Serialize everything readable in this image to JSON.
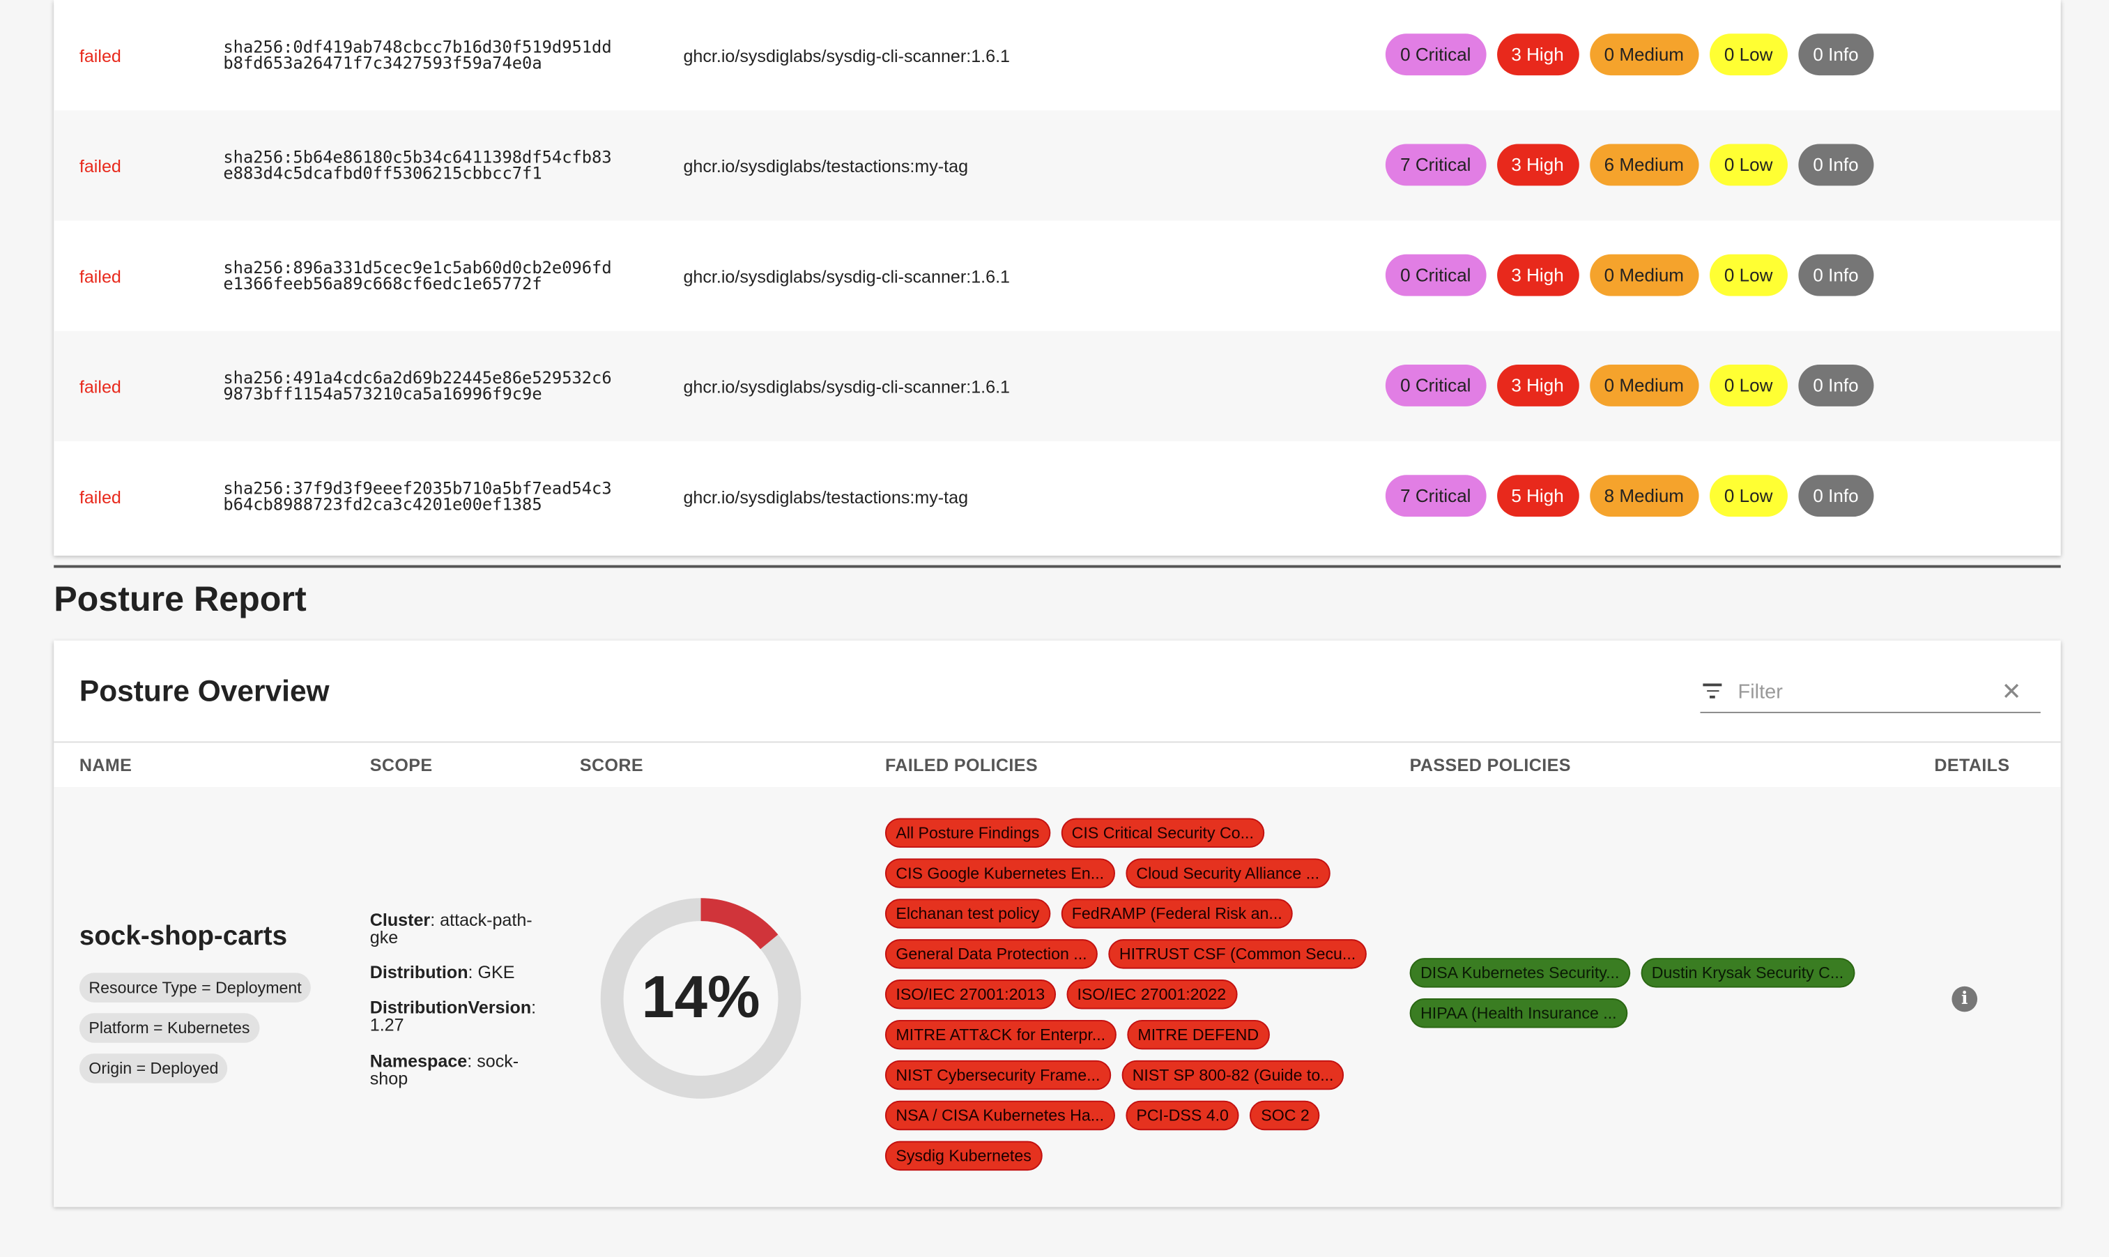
{
  "scans": [
    {
      "status": "failed",
      "digest": "sha256:0df419ab748cbcc7b16d30f519d951dd\nb8fd653a26471f7c3427593f59a74e0a",
      "image": "ghcr.io/sysdiglabs/sysdig-cli-scanner:1.6.1",
      "critical": "0 Critical",
      "high": "3 High",
      "medium": "0 Medium",
      "low": "0 Low",
      "info": "0 Info"
    },
    {
      "status": "failed",
      "digest": "sha256:5b64e86180c5b34c6411398df54cfb83\ne883d4c5dcafbd0ff5306215cbbcc7f1",
      "image": "ghcr.io/sysdiglabs/testactions:my-tag",
      "critical": "7 Critical",
      "high": "3 High",
      "medium": "6 Medium",
      "low": "0 Low",
      "info": "0 Info"
    },
    {
      "status": "failed",
      "digest": "sha256:896a331d5cec9e1c5ab60d0cb2e096fd\ne1366feeb56a89c668cf6edc1e65772f",
      "image": "ghcr.io/sysdiglabs/sysdig-cli-scanner:1.6.1",
      "critical": "0 Critical",
      "high": "3 High",
      "medium": "0 Medium",
      "low": "0 Low",
      "info": "0 Info"
    },
    {
      "status": "failed",
      "digest": "sha256:491a4cdc6a2d69b22445e86e529532c6\n9873bff1154a573210ca5a16996f9c9e",
      "image": "ghcr.io/sysdiglabs/sysdig-cli-scanner:1.6.1",
      "critical": "0 Critical",
      "high": "3 High",
      "medium": "0 Medium",
      "low": "0 Low",
      "info": "0 Info"
    },
    {
      "status": "failed",
      "digest": "sha256:37f9d3f9eeef2035b710a5bf7ead54c3\nb64cb8988723fd2ca3c4201e00ef1385",
      "image": "ghcr.io/sysdiglabs/testactions:my-tag",
      "critical": "7 Critical",
      "high": "5 High",
      "medium": "8 Medium",
      "low": "0 Low",
      "info": "0 Info"
    }
  ],
  "colors": {
    "critical": "#e17ee4",
    "high": "#e8291c",
    "medium": "#f5a32c",
    "low": "#ffff33",
    "info": "#767676",
    "failed_policy": "#e5321f",
    "passed_policy": "#3a7d22",
    "score_arc": "#d0343a"
  },
  "report_title": "Posture Report",
  "overview": {
    "title": "Posture Overview",
    "filter_placeholder": "Filter",
    "filter_icon": "filter-icon",
    "clear_icon": "close-icon",
    "columns": {
      "name": "NAME",
      "scope": "SCOPE",
      "score": "SCORE",
      "failed": "FAILED POLICIES",
      "passed": "PASSED POLICIES",
      "details": "DETAILS"
    },
    "row": {
      "name": "sock-shop-carts",
      "tags": [
        "Resource Type = Deployment",
        "Platform = Kubernetes",
        "Origin = Deployed"
      ],
      "scope": [
        {
          "key": "Cluster",
          "value": "attack-path-gke"
        },
        {
          "key": "Distribution",
          "value": "GKE"
        },
        {
          "key": "DistributionVersion",
          "value": "1.27"
        },
        {
          "key": "Namespace",
          "value": "sock-shop"
        }
      ],
      "score_percent": 14,
      "score_label": "14%",
      "failed_policies": [
        "All Posture Findings",
        "CIS Critical Security Co...",
        "CIS Google Kubernetes En...",
        "Cloud Security Alliance ...",
        "Elchanan test policy",
        "FedRAMP (Federal Risk an...",
        "General Data Protection ...",
        "HITRUST CSF (Common Secu...",
        "ISO/IEC 27001:2013",
        "ISO/IEC 27001:2022",
        "MITRE ATT&CK for Enterpr...",
        "MITRE DEFEND",
        "NIST Cybersecurity Frame...",
        "NIST SP 800-82 (Guide to...",
        "NSA / CISA Kubernetes Ha...",
        "PCI-DSS 4.0",
        "SOC 2",
        "Sysdig Kubernetes"
      ],
      "passed_policies": [
        "DISA Kubernetes Security...",
        "Dustin Krysak Security C...",
        "HIPAA (Health Insurance ..."
      ],
      "details_icon": "info-icon"
    }
  }
}
